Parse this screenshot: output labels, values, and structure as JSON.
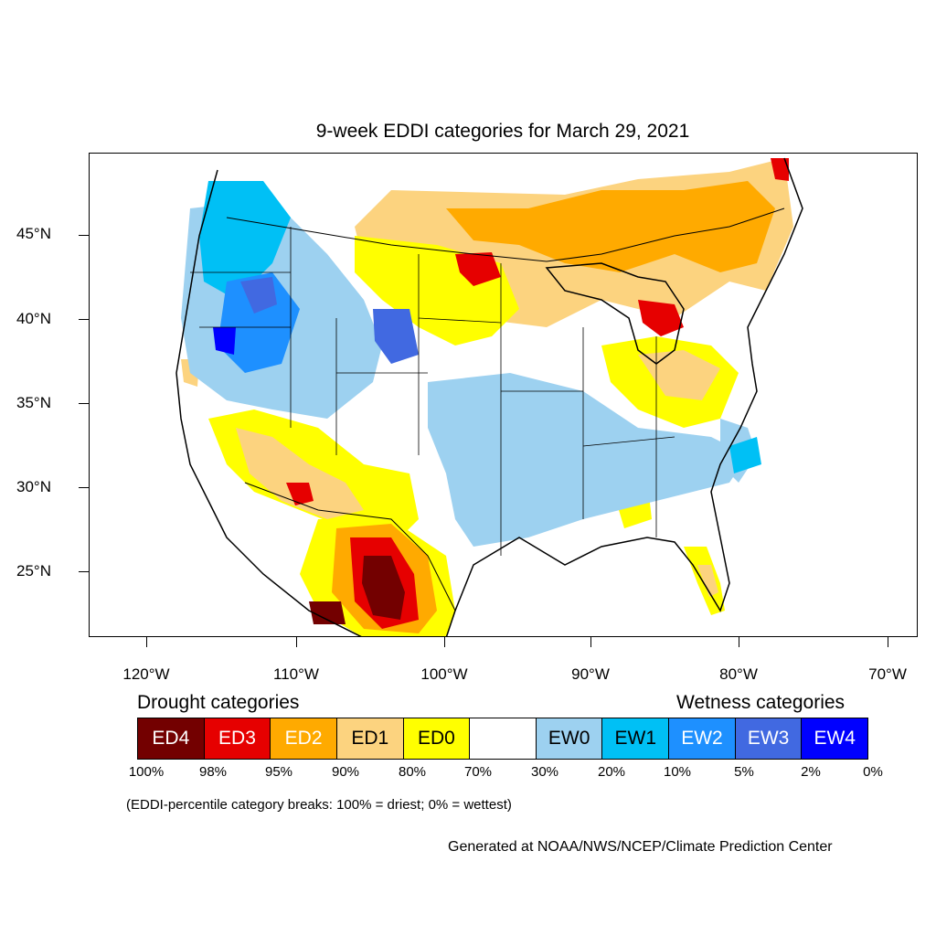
{
  "title": "9-week EDDI categories for March 29, 2021",
  "lat_labels": [
    "45°N",
    "40°N",
    "35°N",
    "30°N",
    "25°N"
  ],
  "lon_labels": [
    "120°W",
    "110°W",
    "100°W",
    "90°W",
    "80°W",
    "70°W"
  ],
  "legend": {
    "drought_heading": "Drought categories",
    "wetness_heading": "Wetness categories",
    "categories": [
      {
        "label": "ED4",
        "color": "#730000"
      },
      {
        "label": "ED3",
        "color": "#e60000"
      },
      {
        "label": "ED2",
        "color": "#ffaa00"
      },
      {
        "label": "ED1",
        "color": "#fcd37f"
      },
      {
        "label": "ED0",
        "color": "#ffff00"
      },
      {
        "label": "",
        "color": "#ffffff"
      },
      {
        "label": "EW0",
        "color": "#9dd1f0"
      },
      {
        "label": "EW1",
        "color": "#00c0f5"
      },
      {
        "label": "EW2",
        "color": "#1e90ff"
      },
      {
        "label": "EW3",
        "color": "#4169e1"
      },
      {
        "label": "EW4",
        "color": "#0000ff"
      }
    ],
    "percentiles": [
      "100%",
      "98%",
      "95%",
      "90%",
      "80%",
      "70%",
      "30%",
      "20%",
      "10%",
      "5%",
      "2%",
      "0%"
    ]
  },
  "note": "(EDDI-percentile category breaks: 100% = driest; 0% = wettest)",
  "credit": "Generated at NOAA/NWS/NCEP/Climate Prediction Center"
}
